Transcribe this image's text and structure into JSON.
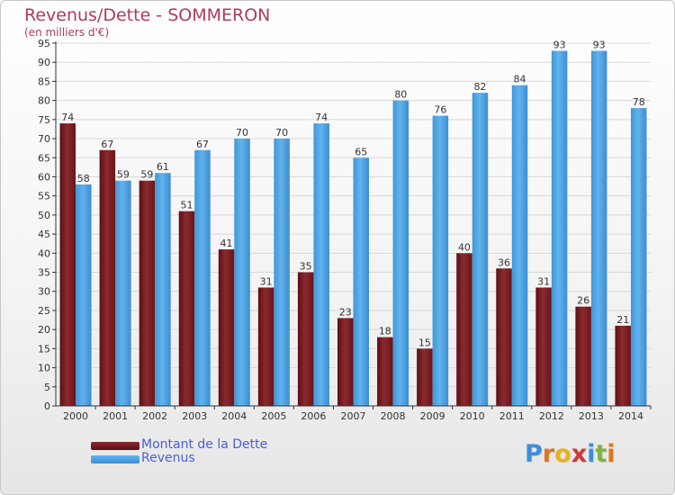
{
  "title": "Revenus/Dette - SOMMERON",
  "subtitle": "(en milliers d'€)",
  "colors": {
    "title": "#b03a5b",
    "debt": "#7a1a1f",
    "revenue": "#4ea2e0",
    "axis": "#333333",
    "grid": "#d8d8d8",
    "legend_text": "#4a5fd6"
  },
  "legend": {
    "debt_label": "Montant de la Dette",
    "revenue_label": "Revenus"
  },
  "logo": {
    "text": "Proxiti",
    "letter_colors": [
      "#3b8fd9",
      "#e0761f",
      "#e8b21a",
      "#c93a3a",
      "#3b8fd9",
      "#7cb342",
      "#e0761f"
    ]
  },
  "chart_data": {
    "type": "bar",
    "title": "Revenus/Dette - SOMMERON",
    "subtitle": "(en milliers d'€)",
    "xlabel": "",
    "ylabel": "",
    "ylim": [
      0,
      95
    ],
    "ytick_step": 5,
    "grid": true,
    "legend_position": "bottom-left",
    "categories": [
      "2000",
      "2001",
      "2002",
      "2003",
      "2004",
      "2005",
      "2006",
      "2007",
      "2008",
      "2009",
      "2010",
      "2011",
      "2012",
      "2013",
      "2014"
    ],
    "series": [
      {
        "name": "Montant de la Dette",
        "values": [
          74,
          67,
          59,
          51,
          41,
          31,
          35,
          23,
          18,
          15,
          40,
          36,
          31,
          26,
          21
        ]
      },
      {
        "name": "Revenus",
        "values": [
          58,
          59,
          61,
          67,
          70,
          70,
          74,
          65,
          80,
          76,
          82,
          84,
          93,
          93,
          78
        ]
      }
    ]
  }
}
